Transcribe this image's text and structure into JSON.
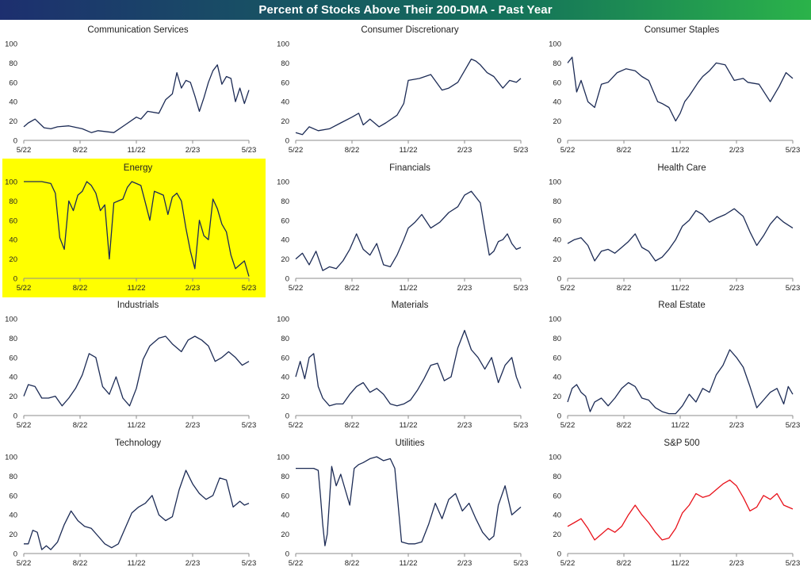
{
  "title": "Percent of Stocks Above Their 200-DMA - Past Year",
  "colors": {
    "title_bar_left": "#1d2f6f",
    "title_bar_mid": "#13705a",
    "title_bar_right": "#2bb34a",
    "line": "#1c2b55",
    "sp500_line": "#e8111a",
    "highlight": "#ffff00",
    "axis": "#8c8c8c",
    "text": "#222222"
  },
  "chart_data": [
    {
      "type": "line",
      "title": "Communication Services",
      "x_ticks": [
        "5/22",
        "8/22",
        "11/22",
        "2/23",
        "5/23"
      ],
      "y_ticks": [
        0,
        20,
        40,
        60,
        80,
        100
      ],
      "ylim": [
        0,
        100
      ],
      "grid": false,
      "highlight": false,
      "x": [
        0,
        0.02,
        0.05,
        0.09,
        0.12,
        0.15,
        0.2,
        0.26,
        0.3,
        0.33,
        0.4,
        0.45,
        0.5,
        0.52,
        0.55,
        0.6,
        0.63,
        0.66,
        0.68,
        0.7,
        0.72,
        0.74,
        0.76,
        0.78,
        0.8,
        0.82,
        0.84,
        0.86,
        0.88,
        0.9,
        0.92,
        0.94,
        0.96,
        0.98,
        1.0
      ],
      "values": [
        14,
        18,
        22,
        13,
        12,
        14,
        15,
        12,
        8,
        10,
        8,
        16,
        24,
        22,
        30,
        28,
        42,
        48,
        70,
        54,
        62,
        60,
        46,
        30,
        44,
        60,
        72,
        78,
        58,
        66,
        64,
        40,
        54,
        38,
        52
      ]
    },
    {
      "type": "line",
      "title": "Consumer Discretionary",
      "x_ticks": [
        "5/22",
        "8/22",
        "11/22",
        "2/23",
        "5/23"
      ],
      "y_ticks": [
        0,
        20,
        40,
        60,
        80,
        100
      ],
      "ylim": [
        0,
        100
      ],
      "grid": false,
      "highlight": false,
      "x": [
        0,
        0.03,
        0.06,
        0.1,
        0.15,
        0.2,
        0.25,
        0.28,
        0.3,
        0.33,
        0.37,
        0.4,
        0.45,
        0.48,
        0.5,
        0.55,
        0.6,
        0.65,
        0.68,
        0.72,
        0.75,
        0.78,
        0.8,
        0.82,
        0.85,
        0.88,
        0.9,
        0.92,
        0.95,
        0.98,
        1.0
      ],
      "values": [
        8,
        6,
        14,
        10,
        12,
        18,
        24,
        28,
        16,
        22,
        14,
        18,
        26,
        38,
        62,
        64,
        68,
        52,
        54,
        60,
        72,
        84,
        82,
        78,
        70,
        66,
        60,
        54,
        62,
        60,
        64
      ]
    },
    {
      "type": "line",
      "title": "Consumer Staples",
      "x_ticks": [
        "5/22",
        "8/22",
        "11/22",
        "2/23",
        "5/23"
      ],
      "y_ticks": [
        0,
        20,
        40,
        60,
        80,
        100
      ],
      "ylim": [
        0,
        100
      ],
      "grid": false,
      "highlight": false,
      "x": [
        0,
        0.02,
        0.04,
        0.06,
        0.09,
        0.12,
        0.15,
        0.18,
        0.22,
        0.26,
        0.3,
        0.33,
        0.36,
        0.4,
        0.42,
        0.45,
        0.48,
        0.5,
        0.52,
        0.54,
        0.58,
        0.6,
        0.63,
        0.66,
        0.7,
        0.74,
        0.78,
        0.8,
        0.85,
        0.9,
        0.94,
        0.97,
        1.0
      ],
      "values": [
        80,
        86,
        50,
        62,
        40,
        34,
        58,
        60,
        70,
        74,
        72,
        66,
        62,
        40,
        38,
        34,
        20,
        28,
        40,
        46,
        60,
        66,
        72,
        80,
        78,
        62,
        64,
        60,
        58,
        40,
        56,
        70,
        64
      ]
    },
    {
      "type": "line",
      "title": "Energy",
      "x_ticks": [
        "5/22",
        "8/22",
        "11/22",
        "2/23",
        "5/23"
      ],
      "y_ticks": [
        0,
        20,
        40,
        60,
        80,
        100
      ],
      "ylim": [
        0,
        100
      ],
      "grid": false,
      "highlight": true,
      "x": [
        0,
        0.04,
        0.08,
        0.12,
        0.14,
        0.16,
        0.18,
        0.2,
        0.22,
        0.24,
        0.26,
        0.28,
        0.3,
        0.32,
        0.34,
        0.36,
        0.38,
        0.4,
        0.42,
        0.44,
        0.46,
        0.48,
        0.5,
        0.52,
        0.54,
        0.56,
        0.58,
        0.6,
        0.62,
        0.64,
        0.66,
        0.68,
        0.7,
        0.72,
        0.74,
        0.76,
        0.78,
        0.8,
        0.82,
        0.84,
        0.86,
        0.88,
        0.9,
        0.92,
        0.94,
        0.96,
        0.98,
        1.0
      ],
      "values": [
        100,
        100,
        100,
        98,
        88,
        42,
        30,
        80,
        70,
        86,
        90,
        100,
        96,
        88,
        70,
        76,
        20,
        78,
        80,
        82,
        94,
        100,
        98,
        96,
        78,
        60,
        90,
        88,
        86,
        66,
        84,
        88,
        80,
        52,
        28,
        10,
        60,
        44,
        40,
        82,
        72,
        56,
        48,
        24,
        10,
        14,
        18,
        2
      ]
    },
    {
      "type": "line",
      "title": "Financials",
      "x_ticks": [
        "5/22",
        "8/22",
        "11/22",
        "2/23",
        "5/23"
      ],
      "y_ticks": [
        0,
        20,
        40,
        60,
        80,
        100
      ],
      "ylim": [
        0,
        100
      ],
      "grid": false,
      "highlight": false,
      "x": [
        0,
        0.03,
        0.06,
        0.09,
        0.12,
        0.15,
        0.18,
        0.21,
        0.24,
        0.27,
        0.3,
        0.33,
        0.36,
        0.39,
        0.42,
        0.45,
        0.48,
        0.5,
        0.53,
        0.56,
        0.6,
        0.64,
        0.68,
        0.72,
        0.75,
        0.78,
        0.8,
        0.82,
        0.84,
        0.86,
        0.88,
        0.9,
        0.92,
        0.94,
        0.96,
        0.98,
        1.0
      ],
      "values": [
        20,
        26,
        14,
        28,
        8,
        12,
        10,
        18,
        30,
        46,
        30,
        24,
        36,
        14,
        12,
        24,
        40,
        52,
        58,
        66,
        52,
        58,
        68,
        74,
        86,
        90,
        84,
        78,
        50,
        24,
        28,
        38,
        40,
        46,
        36,
        30,
        32
      ]
    },
    {
      "type": "line",
      "title": "Health Care",
      "x_ticks": [
        "5/22",
        "8/22",
        "11/22",
        "2/23",
        "5/23"
      ],
      "y_ticks": [
        0,
        20,
        40,
        60,
        80,
        100
      ],
      "ylim": [
        0,
        100
      ],
      "grid": false,
      "highlight": false,
      "x": [
        0,
        0.03,
        0.06,
        0.09,
        0.12,
        0.15,
        0.18,
        0.21,
        0.24,
        0.27,
        0.3,
        0.33,
        0.36,
        0.39,
        0.42,
        0.45,
        0.48,
        0.51,
        0.54,
        0.57,
        0.6,
        0.63,
        0.66,
        0.7,
        0.74,
        0.78,
        0.81,
        0.84,
        0.87,
        0.9,
        0.93,
        0.96,
        1.0
      ],
      "values": [
        36,
        40,
        42,
        34,
        18,
        28,
        30,
        26,
        32,
        38,
        46,
        32,
        28,
        18,
        22,
        30,
        40,
        54,
        60,
        70,
        66,
        58,
        62,
        66,
        72,
        64,
        48,
        34,
        44,
        56,
        64,
        58,
        52
      ]
    },
    {
      "type": "line",
      "title": "Industrials",
      "x_ticks": [
        "5/22",
        "8/22",
        "11/22",
        "2/23",
        "5/23"
      ],
      "y_ticks": [
        0,
        20,
        40,
        60,
        80,
        100
      ],
      "ylim": [
        0,
        100
      ],
      "grid": false,
      "highlight": false,
      "x": [
        0,
        0.02,
        0.05,
        0.08,
        0.11,
        0.14,
        0.17,
        0.2,
        0.23,
        0.26,
        0.29,
        0.32,
        0.35,
        0.38,
        0.41,
        0.44,
        0.47,
        0.5,
        0.53,
        0.56,
        0.6,
        0.63,
        0.66,
        0.7,
        0.73,
        0.76,
        0.79,
        0.82,
        0.85,
        0.88,
        0.91,
        0.94,
        0.97,
        1.0
      ],
      "values": [
        20,
        32,
        30,
        18,
        18,
        20,
        10,
        18,
        28,
        42,
        64,
        60,
        30,
        22,
        40,
        18,
        10,
        28,
        58,
        72,
        80,
        82,
        74,
        66,
        78,
        82,
        78,
        72,
        56,
        60,
        66,
        60,
        52,
        56
      ]
    },
    {
      "type": "line",
      "title": "Materials",
      "x_ticks": [
        "5/22",
        "8/22",
        "11/22",
        "2/23",
        "5/23"
      ],
      "y_ticks": [
        0,
        20,
        40,
        60,
        80,
        100
      ],
      "ylim": [
        0,
        100
      ],
      "grid": false,
      "highlight": false,
      "x": [
        0,
        0.02,
        0.04,
        0.06,
        0.08,
        0.1,
        0.12,
        0.15,
        0.18,
        0.21,
        0.24,
        0.27,
        0.3,
        0.33,
        0.36,
        0.39,
        0.42,
        0.45,
        0.48,
        0.51,
        0.54,
        0.57,
        0.6,
        0.63,
        0.66,
        0.69,
        0.72,
        0.75,
        0.78,
        0.81,
        0.84,
        0.87,
        0.9,
        0.93,
        0.96,
        0.98,
        1.0
      ],
      "values": [
        40,
        56,
        38,
        60,
        64,
        30,
        18,
        10,
        12,
        12,
        22,
        30,
        34,
        24,
        28,
        22,
        12,
        10,
        12,
        16,
        26,
        38,
        52,
        54,
        36,
        40,
        70,
        88,
        68,
        60,
        48,
        60,
        34,
        52,
        60,
        40,
        28
      ]
    },
    {
      "type": "line",
      "title": "Real Estate",
      "x_ticks": [
        "5/22",
        "8/22",
        "11/22",
        "2/23",
        "5/23"
      ],
      "y_ticks": [
        0,
        20,
        40,
        60,
        80,
        100
      ],
      "ylim": [
        0,
        100
      ],
      "grid": false,
      "highlight": false,
      "x": [
        0,
        0.02,
        0.04,
        0.06,
        0.08,
        0.1,
        0.12,
        0.15,
        0.18,
        0.21,
        0.24,
        0.27,
        0.3,
        0.33,
        0.36,
        0.39,
        0.42,
        0.45,
        0.48,
        0.51,
        0.54,
        0.57,
        0.6,
        0.63,
        0.66,
        0.69,
        0.72,
        0.75,
        0.78,
        0.81,
        0.84,
        0.87,
        0.9,
        0.93,
        0.96,
        0.98,
        1.0
      ],
      "values": [
        14,
        28,
        32,
        24,
        20,
        4,
        14,
        18,
        10,
        18,
        28,
        34,
        30,
        18,
        16,
        8,
        4,
        2,
        2,
        10,
        22,
        14,
        28,
        24,
        42,
        52,
        68,
        60,
        50,
        30,
        8,
        16,
        24,
        28,
        12,
        30,
        22
      ]
    },
    {
      "type": "line",
      "title": "Technology",
      "x_ticks": [
        "5/22",
        "8/22",
        "11/22",
        "2/23",
        "5/23"
      ],
      "y_ticks": [
        0,
        20,
        40,
        60,
        80,
        100
      ],
      "ylim": [
        0,
        100
      ],
      "grid": false,
      "highlight": false,
      "x": [
        0,
        0.02,
        0.04,
        0.06,
        0.08,
        0.1,
        0.12,
        0.15,
        0.18,
        0.21,
        0.24,
        0.27,
        0.3,
        0.33,
        0.36,
        0.39,
        0.42,
        0.45,
        0.48,
        0.51,
        0.54,
        0.57,
        0.6,
        0.63,
        0.66,
        0.69,
        0.72,
        0.75,
        0.78,
        0.81,
        0.84,
        0.87,
        0.9,
        0.93,
        0.96,
        0.98,
        1.0
      ],
      "values": [
        10,
        10,
        24,
        22,
        4,
        8,
        4,
        12,
        30,
        44,
        34,
        28,
        26,
        18,
        10,
        6,
        10,
        26,
        42,
        48,
        52,
        60,
        40,
        34,
        38,
        66,
        86,
        72,
        62,
        56,
        60,
        78,
        76,
        48,
        54,
        50,
        52
      ]
    },
    {
      "type": "line",
      "title": "Utilities",
      "x_ticks": [
        "5/22",
        "8/22",
        "11/22",
        "2/23",
        "5/23"
      ],
      "y_ticks": [
        0,
        20,
        40,
        60,
        80,
        100
      ],
      "ylim": [
        0,
        100
      ],
      "grid": false,
      "highlight": false,
      "x": [
        0,
        0.05,
        0.08,
        0.1,
        0.11,
        0.12,
        0.13,
        0.14,
        0.16,
        0.18,
        0.2,
        0.22,
        0.24,
        0.26,
        0.28,
        0.3,
        0.33,
        0.36,
        0.39,
        0.42,
        0.44,
        0.47,
        0.5,
        0.53,
        0.56,
        0.59,
        0.62,
        0.65,
        0.68,
        0.71,
        0.74,
        0.77,
        0.8,
        0.83,
        0.86,
        0.88,
        0.9,
        0.93,
        0.96,
        1.0
      ],
      "values": [
        88,
        88,
        88,
        86,
        60,
        30,
        8,
        20,
        90,
        70,
        82,
        66,
        50,
        88,
        92,
        94,
        98,
        100,
        96,
        98,
        88,
        12,
        10,
        10,
        12,
        30,
        52,
        36,
        56,
        62,
        44,
        52,
        36,
        22,
        14,
        18,
        50,
        70,
        40,
        48
      ]
    },
    {
      "type": "line",
      "title": "S&P 500",
      "x_ticks": [
        "5/22",
        "8/22",
        "11/22",
        "2/23",
        "5/23"
      ],
      "y_ticks": [
        0,
        20,
        40,
        60,
        80,
        100
      ],
      "ylim": [
        0,
        100
      ],
      "grid": false,
      "highlight": false,
      "line_color": "#e8111a",
      "x": [
        0,
        0.03,
        0.06,
        0.09,
        0.12,
        0.15,
        0.18,
        0.21,
        0.24,
        0.27,
        0.3,
        0.33,
        0.36,
        0.39,
        0.42,
        0.45,
        0.48,
        0.51,
        0.54,
        0.57,
        0.6,
        0.63,
        0.66,
        0.69,
        0.72,
        0.75,
        0.78,
        0.81,
        0.84,
        0.87,
        0.9,
        0.93,
        0.96,
        1.0
      ],
      "values": [
        28,
        32,
        36,
        26,
        14,
        20,
        26,
        22,
        28,
        40,
        50,
        40,
        32,
        22,
        14,
        16,
        26,
        42,
        50,
        62,
        58,
        60,
        66,
        72,
        76,
        70,
        58,
        44,
        48,
        60,
        56,
        62,
        50,
        46
      ]
    }
  ]
}
